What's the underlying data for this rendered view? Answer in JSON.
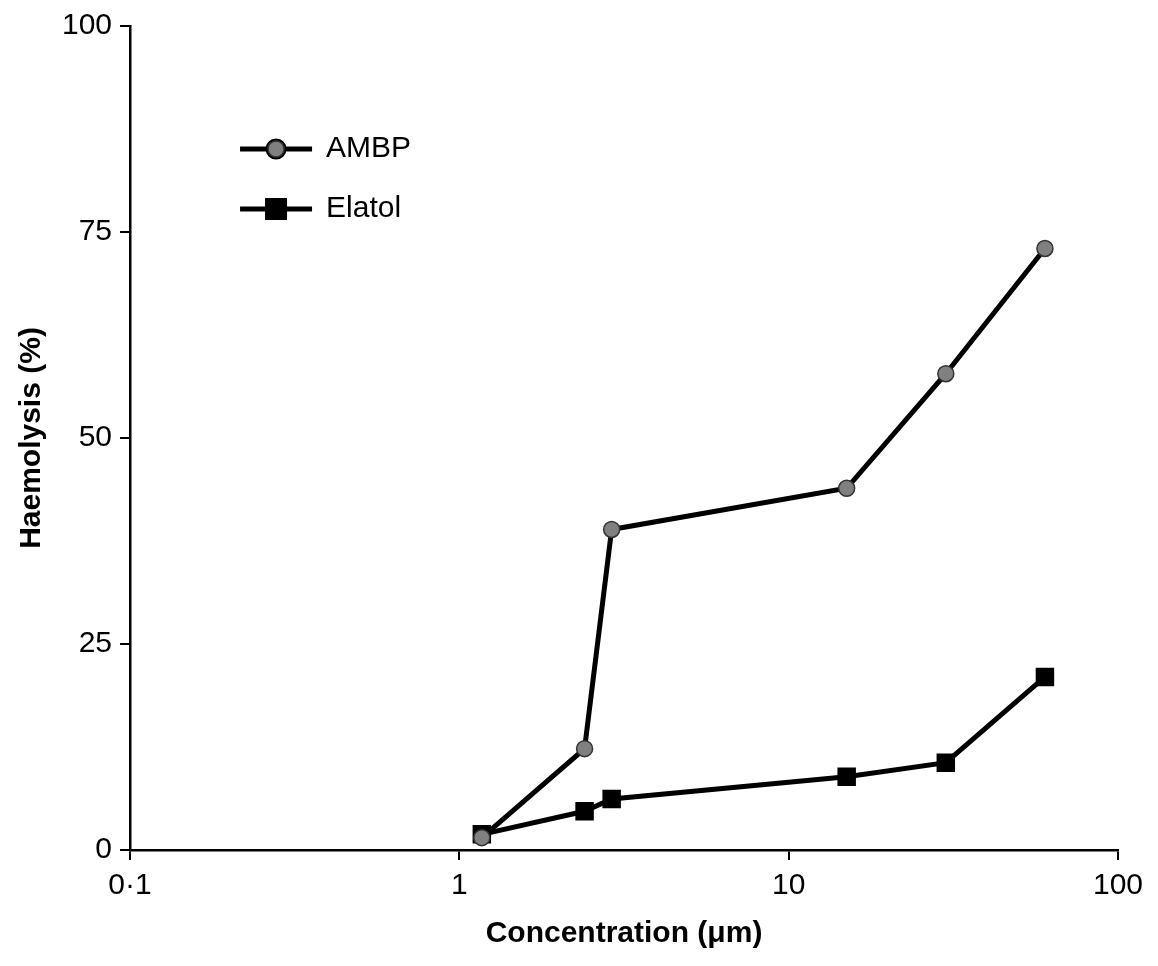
{
  "chart_data": {
    "type": "line",
    "x_label": "Concentration (μm)",
    "y_label": "Haemolysis (%)",
    "log": "x",
    "grid": false,
    "legend": "upper left",
    "xlim": [
      0.1,
      100
    ],
    "xticks": [
      {
        "value": 0.1,
        "label": "0·1"
      },
      1,
      10,
      100
    ],
    "ylim": [
      0,
      100
    ],
    "yticks": [
      0,
      25,
      50,
      75,
      100
    ],
    "series": [
      {
        "name": "AMBP",
        "color": "#808080",
        "marker": "circle",
        "line_style": "solid",
        "x": [
          1.17,
          2.4,
          2.9,
          15,
          30,
          60
        ],
        "values": [
          1.5,
          12.3,
          38.9,
          43.9,
          57.8,
          73
        ]
      },
      {
        "name": "Elatol",
        "color": "#000000",
        "marker": "square",
        "line_style": "solid",
        "x": [
          1.17,
          2.4,
          2.9,
          15,
          30,
          60
        ],
        "values": [
          1.9,
          4.7,
          6.2,
          8.9,
          10.6,
          21
        ]
      }
    ]
  }
}
